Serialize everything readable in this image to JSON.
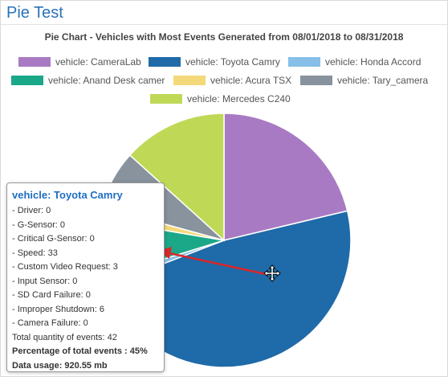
{
  "page": {
    "title": "Pie Test"
  },
  "chart_data": {
    "type": "pie",
    "title": "Pie Chart - Vehicles with Most Events Generated from 08/01/2018 to 08/31/2018",
    "legend_position": "top",
    "slices": [
      {
        "name": "vehicle: CameraLab",
        "value": 20,
        "color": "#a97ac4"
      },
      {
        "name": "vehicle: Toyota Camry",
        "value": 45,
        "color": "#1f6aa8"
      },
      {
        "name": "vehicle: Honda Accord",
        "value": 1,
        "color": "#87bfe8"
      },
      {
        "name": "vehicle: Anand Desk camer",
        "value": 7,
        "color": "#1aa889"
      },
      {
        "name": "vehicle: Acura TSX",
        "value": 1.5,
        "color": "#f3d97a"
      },
      {
        "name": "vehicle: Tary_camera",
        "value": 7,
        "color": "#88939e"
      },
      {
        "name": "vehicle: Mercedes C240",
        "value": 12.5,
        "color": "#bfd957"
      }
    ]
  },
  "tooltip": {
    "title": "vehicle: Toyota Camry",
    "lines": [
      "- Driver: 0",
      "- G-Sensor: 0",
      "- Critical G-Sensor: 0",
      "- Speed: 33",
      "- Custom Video Request: 3",
      "- Input Sensor: 0",
      "- SD Card Failure: 0",
      "- Improper Shutdown: 6",
      "- Camera Failure: 0",
      "Total quantity of events: 42"
    ],
    "percentage": "Percentage of total events : 45%",
    "data_usage": "Data usage: 920.55 mb"
  },
  "annotation": {
    "color": "#d9282a"
  },
  "icons": {
    "cursor": "move-cursor-icon"
  }
}
